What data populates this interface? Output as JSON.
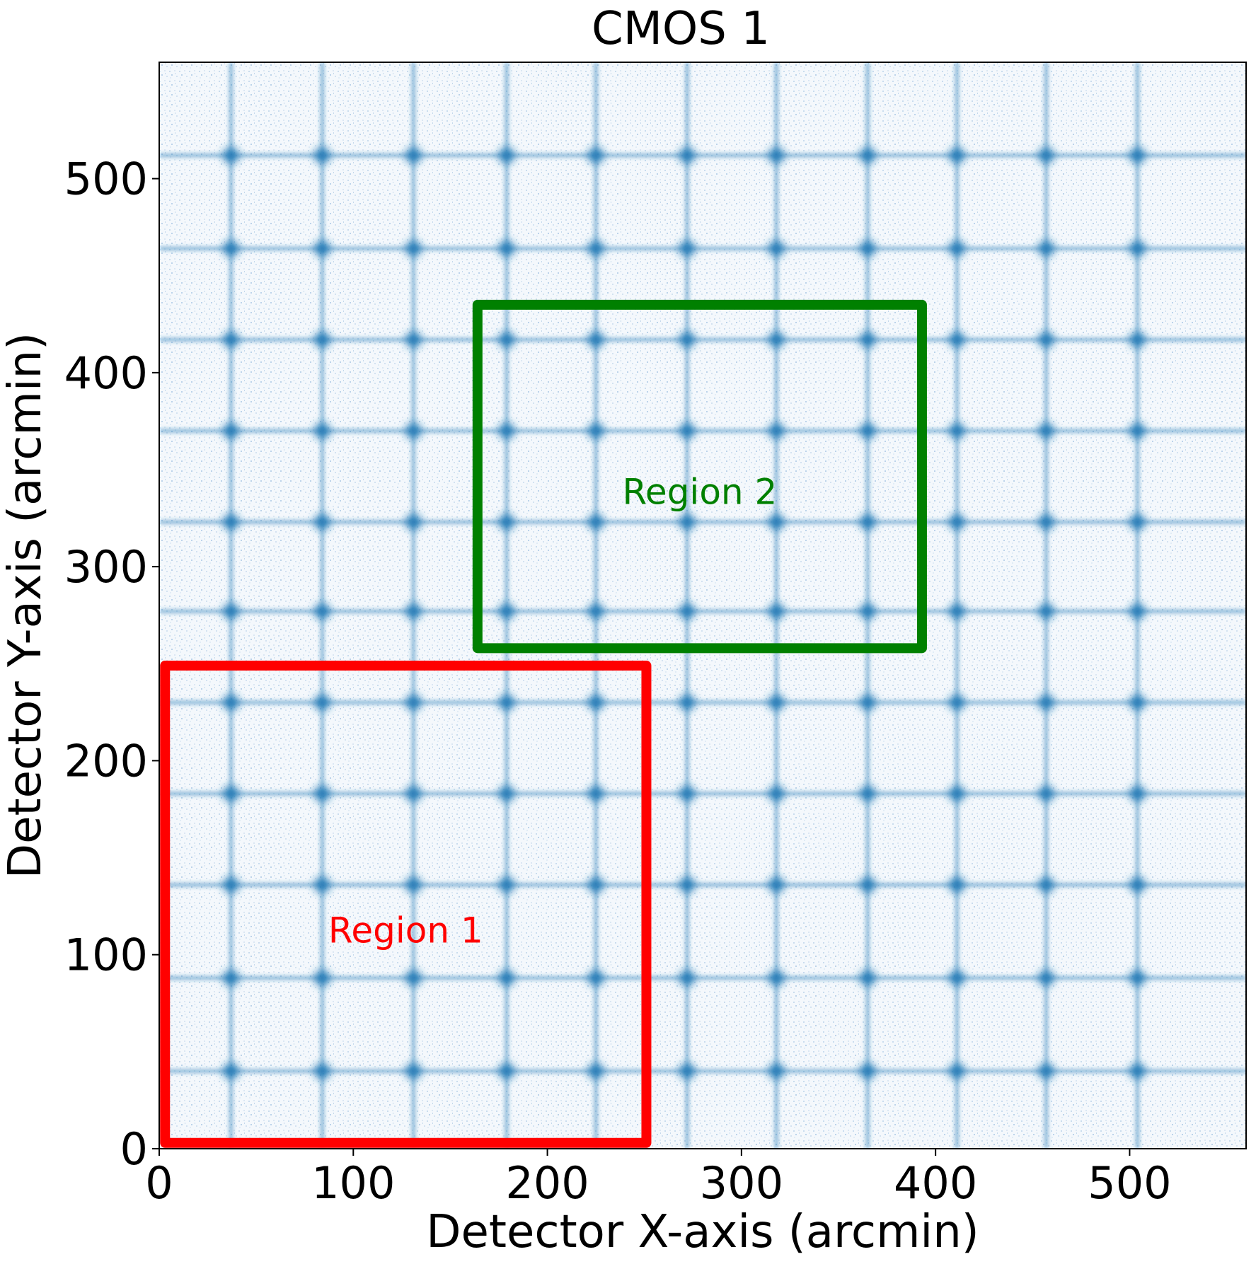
{
  "chart_data": {
    "type": "heatmap",
    "title": "CMOS 1",
    "xlabel": "Detector X-axis (arcmin)",
    "ylabel": "Detector Y-axis (arcmin)",
    "xlim": [
      0,
      560
    ],
    "ylim": [
      0,
      560
    ],
    "xticks": [
      0,
      100,
      200,
      300,
      400,
      500
    ],
    "yticks": [
      0,
      100,
      200,
      300,
      400,
      500
    ],
    "colormap_color": "#1f77b4",
    "grid_columns_x": [
      37,
      84,
      131,
      179,
      225,
      272,
      318,
      365,
      411,
      457,
      504
    ],
    "grid_rows_y": [
      40,
      88,
      136,
      183,
      230,
      277,
      323,
      370,
      417,
      464,
      512
    ],
    "regions": [
      {
        "name": "Region 1",
        "x": [
          3,
          251
        ],
        "y": [
          3,
          249
        ],
        "color": "#ff0000"
      },
      {
        "name": "Region 2",
        "x": [
          164,
          393
        ],
        "y": [
          258,
          435
        ],
        "color": "#008000"
      }
    ]
  }
}
